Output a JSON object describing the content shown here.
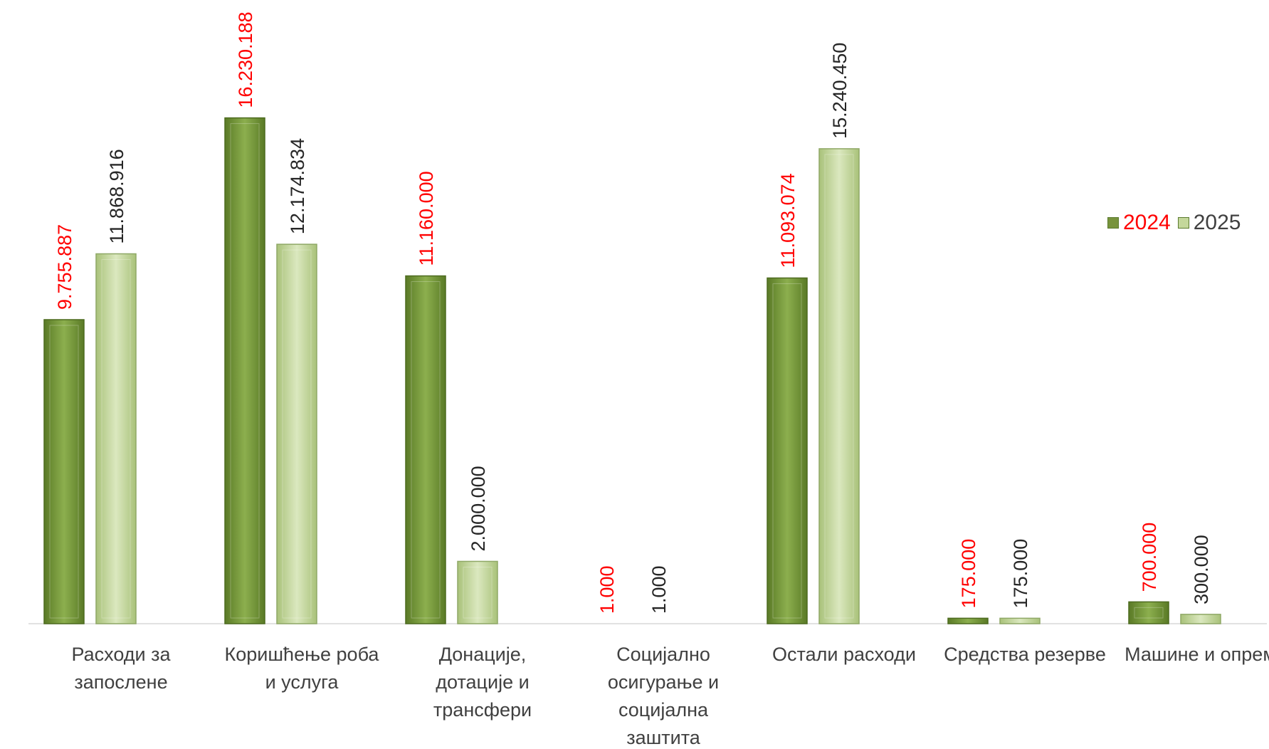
{
  "chart_data": {
    "type": "bar",
    "title": "",
    "xlabel": "",
    "ylabel": "",
    "ylim": [
      0,
      17500000
    ],
    "grid": false,
    "legend_position": "right",
    "categories": [
      [
        "Расходи  за",
        "запослене"
      ],
      [
        "Коришћење роба",
        "и услуга"
      ],
      [
        "Донације,",
        "дотације и",
        "трансфери"
      ],
      [
        "Социјално",
        "осигурање и",
        "социјална",
        "заштита"
      ],
      [
        "Остали расходи"
      ],
      [
        "Средства резерве"
      ],
      [
        "Машине и опрема"
      ]
    ],
    "series": [
      {
        "name": "2024",
        "values": [
          9755887,
          16230188,
          11160000,
          1000,
          11093074,
          175000,
          700000
        ],
        "labels": [
          "9.755.887",
          "16.230.188",
          "11.160.000",
          "1.000",
          "11.093.074",
          "175.000",
          "700.000"
        ],
        "color": "#77933c",
        "label_color": "#ff0000"
      },
      {
        "name": "2025",
        "values": [
          11868916,
          12174834,
          2000000,
          1000,
          15240450,
          175000,
          300000
        ],
        "labels": [
          "11.868.916",
          "12.174.834",
          "2.000.000",
          "1.000",
          "15.240.450",
          "175.000",
          "300.000"
        ],
        "color": "#c4d79b",
        "label_color": "#262626"
      }
    ]
  }
}
